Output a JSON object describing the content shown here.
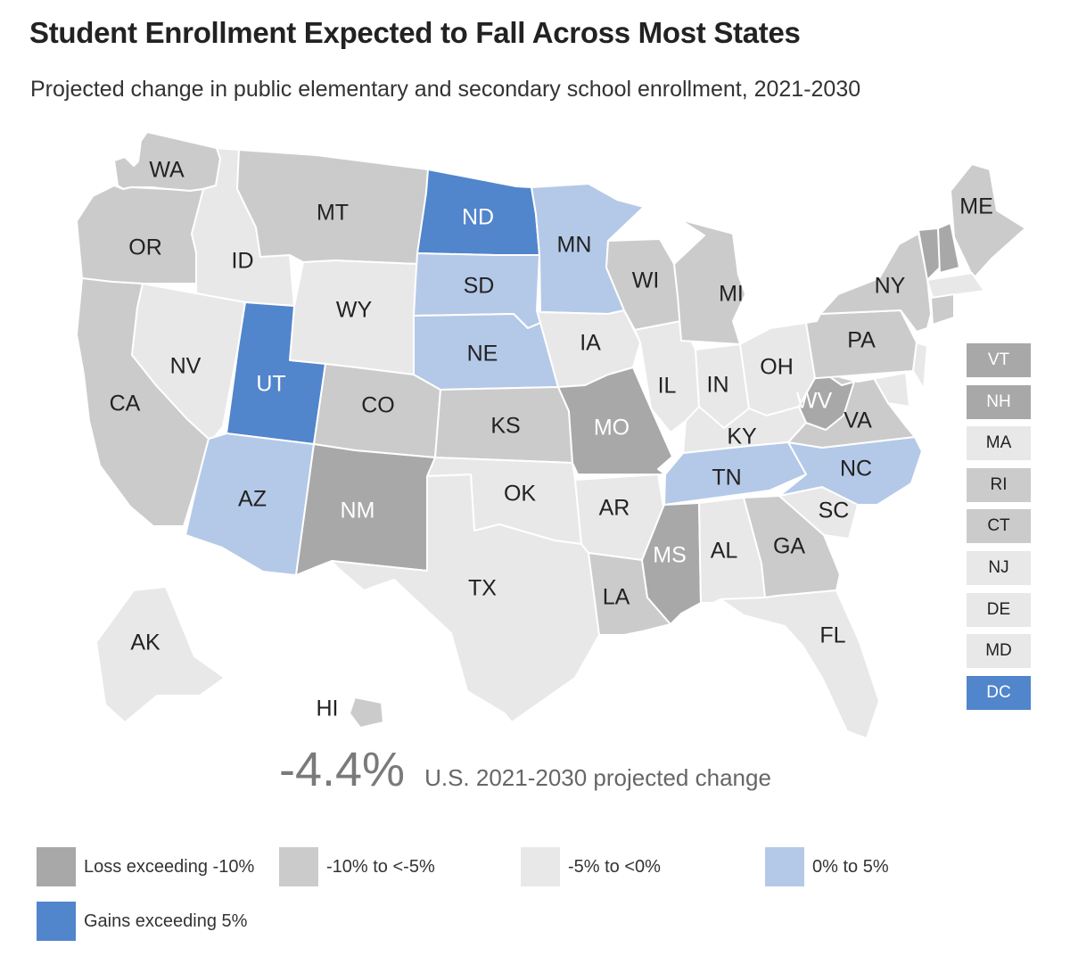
{
  "header": {
    "title": "Student Enrollment Expected to Fall Across Most States",
    "subtitle": "Projected change in public elementary and secondary school enrollment, 2021-2030"
  },
  "colors": {
    "loss_over_10": "#a8a8a8",
    "loss_5_to_10": "#cbcbcb",
    "loss_0_to_5": "#e8e8e8",
    "gain_0_to_5": "#b4c9e8",
    "gain_over_5": "#5185cc",
    "label_dark": "#222222",
    "label_light": "#ffffff"
  },
  "legend": [
    {
      "category": "loss_over_10",
      "label": "Loss exceeding -10%"
    },
    {
      "category": "loss_5_to_10",
      "label": "-10% to <-5%"
    },
    {
      "category": "loss_0_to_5",
      "label": "-5% to <0%"
    },
    {
      "category": "gain_0_to_5",
      "label": "0% to 5%"
    },
    {
      "category": "gain_over_5",
      "label": "Gains exceeding 5%"
    }
  ],
  "national": {
    "value": "-4.4%",
    "label": "U.S. 2021-2030 projected change"
  },
  "states": [
    {
      "abbr": "WA",
      "category": "loss_5_to_10"
    },
    {
      "abbr": "OR",
      "category": "loss_5_to_10"
    },
    {
      "abbr": "CA",
      "category": "loss_5_to_10"
    },
    {
      "abbr": "ID",
      "category": "loss_0_to_5"
    },
    {
      "abbr": "NV",
      "category": "loss_0_to_5"
    },
    {
      "abbr": "MT",
      "category": "loss_5_to_10"
    },
    {
      "abbr": "WY",
      "category": "loss_0_to_5"
    },
    {
      "abbr": "UT",
      "category": "gain_over_5"
    },
    {
      "abbr": "AZ",
      "category": "gain_0_to_5"
    },
    {
      "abbr": "CO",
      "category": "loss_5_to_10"
    },
    {
      "abbr": "NM",
      "category": "loss_over_10"
    },
    {
      "abbr": "ND",
      "category": "gain_over_5"
    },
    {
      "abbr": "SD",
      "category": "gain_0_to_5"
    },
    {
      "abbr": "NE",
      "category": "gain_0_to_5"
    },
    {
      "abbr": "KS",
      "category": "loss_5_to_10"
    },
    {
      "abbr": "OK",
      "category": "loss_0_to_5"
    },
    {
      "abbr": "TX",
      "category": "loss_0_to_5"
    },
    {
      "abbr": "MN",
      "category": "gain_0_to_5"
    },
    {
      "abbr": "IA",
      "category": "loss_0_to_5"
    },
    {
      "abbr": "MO",
      "category": "loss_over_10"
    },
    {
      "abbr": "AR",
      "category": "loss_0_to_5"
    },
    {
      "abbr": "LA",
      "category": "loss_5_to_10"
    },
    {
      "abbr": "WI",
      "category": "loss_5_to_10"
    },
    {
      "abbr": "IL",
      "category": "loss_0_to_5"
    },
    {
      "abbr": "MI",
      "category": "loss_5_to_10"
    },
    {
      "abbr": "IN",
      "category": "loss_0_to_5"
    },
    {
      "abbr": "OH",
      "category": "loss_0_to_5"
    },
    {
      "abbr": "KY",
      "category": "loss_0_to_5"
    },
    {
      "abbr": "TN",
      "category": "gain_0_to_5"
    },
    {
      "abbr": "MS",
      "category": "loss_over_10"
    },
    {
      "abbr": "AL",
      "category": "loss_0_to_5"
    },
    {
      "abbr": "GA",
      "category": "loss_5_to_10"
    },
    {
      "abbr": "FL",
      "category": "loss_0_to_5"
    },
    {
      "abbr": "SC",
      "category": "loss_0_to_5"
    },
    {
      "abbr": "NC",
      "category": "gain_0_to_5"
    },
    {
      "abbr": "VA",
      "category": "loss_5_to_10"
    },
    {
      "abbr": "WV",
      "category": "loss_over_10"
    },
    {
      "abbr": "PA",
      "category": "loss_5_to_10"
    },
    {
      "abbr": "NY",
      "category": "loss_5_to_10"
    },
    {
      "abbr": "ME",
      "category": "loss_5_to_10"
    },
    {
      "abbr": "AK",
      "category": "loss_0_to_5"
    },
    {
      "abbr": "HI",
      "category": "loss_5_to_10"
    }
  ],
  "small_states": [
    {
      "abbr": "VT",
      "category": "loss_over_10"
    },
    {
      "abbr": "NH",
      "category": "loss_over_10"
    },
    {
      "abbr": "MA",
      "category": "loss_0_to_5"
    },
    {
      "abbr": "RI",
      "category": "loss_5_to_10"
    },
    {
      "abbr": "CT",
      "category": "loss_5_to_10"
    },
    {
      "abbr": "NJ",
      "category": "loss_0_to_5"
    },
    {
      "abbr": "DE",
      "category": "loss_0_to_5"
    },
    {
      "abbr": "MD",
      "category": "loss_0_to_5"
    },
    {
      "abbr": "DC",
      "category": "gain_over_5"
    }
  ]
}
